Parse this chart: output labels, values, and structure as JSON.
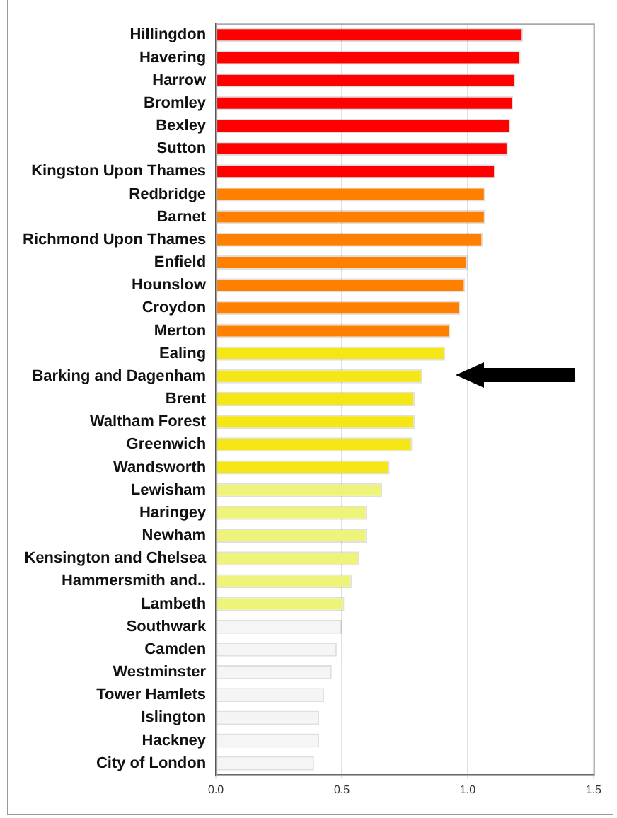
{
  "chart_data": {
    "type": "bar",
    "orientation": "horizontal",
    "categories": [
      "Hillingdon",
      "Havering",
      "Harrow",
      "Bromley",
      "Bexley",
      "Sutton",
      "Kingston Upon Thames",
      "Redbridge",
      "Barnet",
      "Richmond Upon Thames",
      "Enfield",
      "Hounslow",
      "Croydon",
      "Merton",
      "Ealing",
      "Barking and Dagenham",
      "Brent",
      "Waltham Forest",
      "Greenwich",
      "Wandsworth",
      "Lewisham",
      "Haringey",
      "Newham",
      "Kensington and Chelsea",
      "Hammersmith and..",
      "Lambeth",
      "Southwark",
      "Camden",
      "Westminster",
      "Tower Hamlets",
      "Islington",
      "Hackney",
      "City of London"
    ],
    "values": [
      1.22,
      1.21,
      1.19,
      1.18,
      1.17,
      1.16,
      1.11,
      1.07,
      1.07,
      1.06,
      1.0,
      0.99,
      0.97,
      0.93,
      0.91,
      0.82,
      0.79,
      0.79,
      0.78,
      0.69,
      0.66,
      0.6,
      0.6,
      0.57,
      0.54,
      0.51,
      0.5,
      0.48,
      0.46,
      0.43,
      0.41,
      0.41,
      0.39
    ],
    "colors": [
      "#ff0000",
      "#ff0000",
      "#ff0000",
      "#ff0000",
      "#ff0000",
      "#ff0000",
      "#ff0000",
      "#ff8000",
      "#ff8000",
      "#ff8000",
      "#ff8000",
      "#ff8000",
      "#ff8000",
      "#ff8000",
      "#f5e616",
      "#f5e616",
      "#f5e616",
      "#f5e616",
      "#f5e616",
      "#f5e616",
      "#eef47a",
      "#eef47a",
      "#eef47a",
      "#eef47a",
      "#eef47a",
      "#eef47a",
      "#f5f5f5",
      "#f5f5f5",
      "#f5f5f5",
      "#f5f5f5",
      "#f5f5f5",
      "#f5f5f5",
      "#f5f5f5"
    ],
    "xlim": [
      0,
      1.5
    ],
    "xticks": [
      {
        "value": 0,
        "label": "0.0"
      },
      {
        "value": 0.5,
        "label": "0.5"
      },
      {
        "value": 1,
        "label": "1.0"
      },
      {
        "value": 1.5,
        "label": "1.5"
      }
    ],
    "grid": "x"
  }
}
